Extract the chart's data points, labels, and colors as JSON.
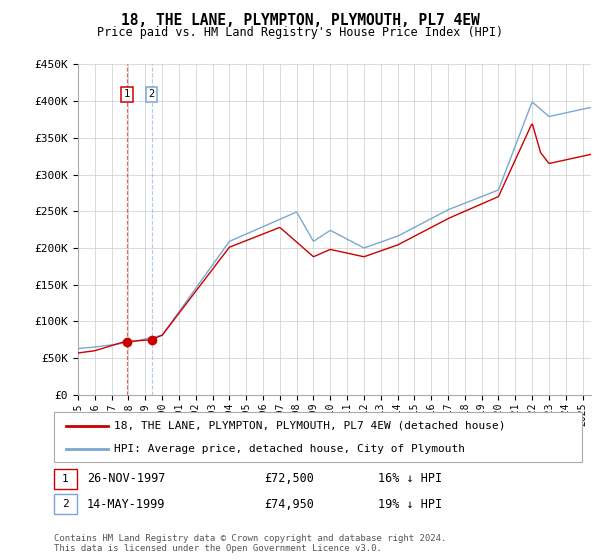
{
  "title": "18, THE LANE, PLYMPTON, PLYMOUTH, PL7 4EW",
  "subtitle": "Price paid vs. HM Land Registry's House Price Index (HPI)",
  "legend_line1": "18, THE LANE, PLYMPTON, PLYMOUTH, PL7 4EW (detached house)",
  "legend_line2": "HPI: Average price, detached house, City of Plymouth",
  "sale1_date": 1997.9,
  "sale1_price": 72500,
  "sale1_label": "1",
  "sale1_display": "26-NOV-1997",
  "sale1_amount": "£72,500",
  "sale1_hpi": "16% ↓ HPI",
  "sale2_date": 1999.37,
  "sale2_price": 74950,
  "sale2_label": "2",
  "sale2_display": "14-MAY-1999",
  "sale2_amount": "£74,950",
  "sale2_hpi": "19% ↓ HPI",
  "hpi_color": "#7aa8d2",
  "price_color": "#cc0000",
  "grid_color": "#cccccc",
  "ylim": [
    0,
    450000
  ],
  "xlim": [
    1995,
    2025.5
  ],
  "copyright": "Contains HM Land Registry data © Crown copyright and database right 2024.\nThis data is licensed under the Open Government Licence v3.0."
}
